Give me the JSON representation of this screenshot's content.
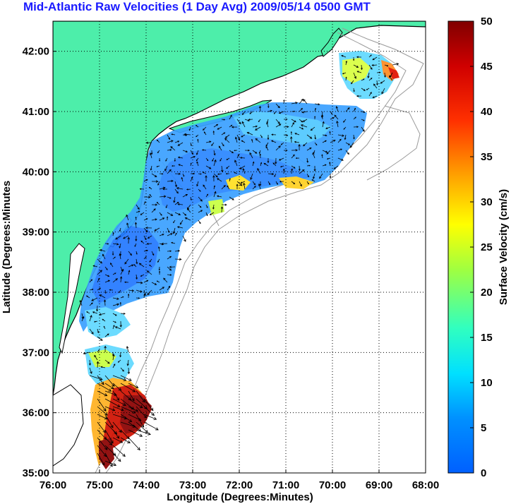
{
  "title": "Mid-Atlantic Raw Velocities (1 Day Avg) 2009/05/14 0500 GMT",
  "colors": {
    "title": "#1a1aff",
    "land": "#4deeaa",
    "coast": "#000000",
    "bathymetry": "#9a9a9a",
    "grid": "#000000"
  },
  "map": {
    "xlabel": "Longitude (Degrees:Minutes)",
    "ylabel": "Latitude (Degrees:Minutes",
    "lon_range": [
      -76,
      -68
    ],
    "lat_range": [
      35,
      42.5
    ],
    "x_ticks": [
      {
        "value": -76,
        "label": "76:00"
      },
      {
        "value": -75,
        "label": "75:00"
      },
      {
        "value": -74,
        "label": "74:00"
      },
      {
        "value": -73,
        "label": "73:00"
      },
      {
        "value": -72,
        "label": "72:00"
      },
      {
        "value": -71,
        "label": "71:00"
      },
      {
        "value": -70,
        "label": "70:00"
      },
      {
        "value": -69,
        "label": "69:00"
      },
      {
        "value": -68,
        "label": "68:00"
      }
    ],
    "y_ticks": [
      {
        "value": 35,
        "label": "35:00"
      },
      {
        "value": 36,
        "label": "36:00"
      },
      {
        "value": 37,
        "label": "37:00"
      },
      {
        "value": 38,
        "label": "38:00"
      },
      {
        "value": 39,
        "label": "39:00"
      },
      {
        "value": 40,
        "label": "40:00"
      },
      {
        "value": 41,
        "label": "41:00"
      },
      {
        "value": 42,
        "label": "42:00"
      }
    ],
    "grid": "dotted"
  },
  "colorbar": {
    "label": "Surface Velocity (cm/s)",
    "range": [
      0,
      50
    ],
    "ticks": [
      {
        "value": 0,
        "label": "0"
      },
      {
        "value": 5,
        "label": "5"
      },
      {
        "value": 10,
        "label": "10"
      },
      {
        "value": 15,
        "label": "15"
      },
      {
        "value": 20,
        "label": "20"
      },
      {
        "value": 25,
        "label": "25"
      },
      {
        "value": 30,
        "label": "30"
      },
      {
        "value": 35,
        "label": "35"
      },
      {
        "value": 40,
        "label": "40"
      },
      {
        "value": 45,
        "label": "45"
      },
      {
        "value": 50,
        "label": "50"
      }
    ],
    "colormap": "jet"
  }
}
